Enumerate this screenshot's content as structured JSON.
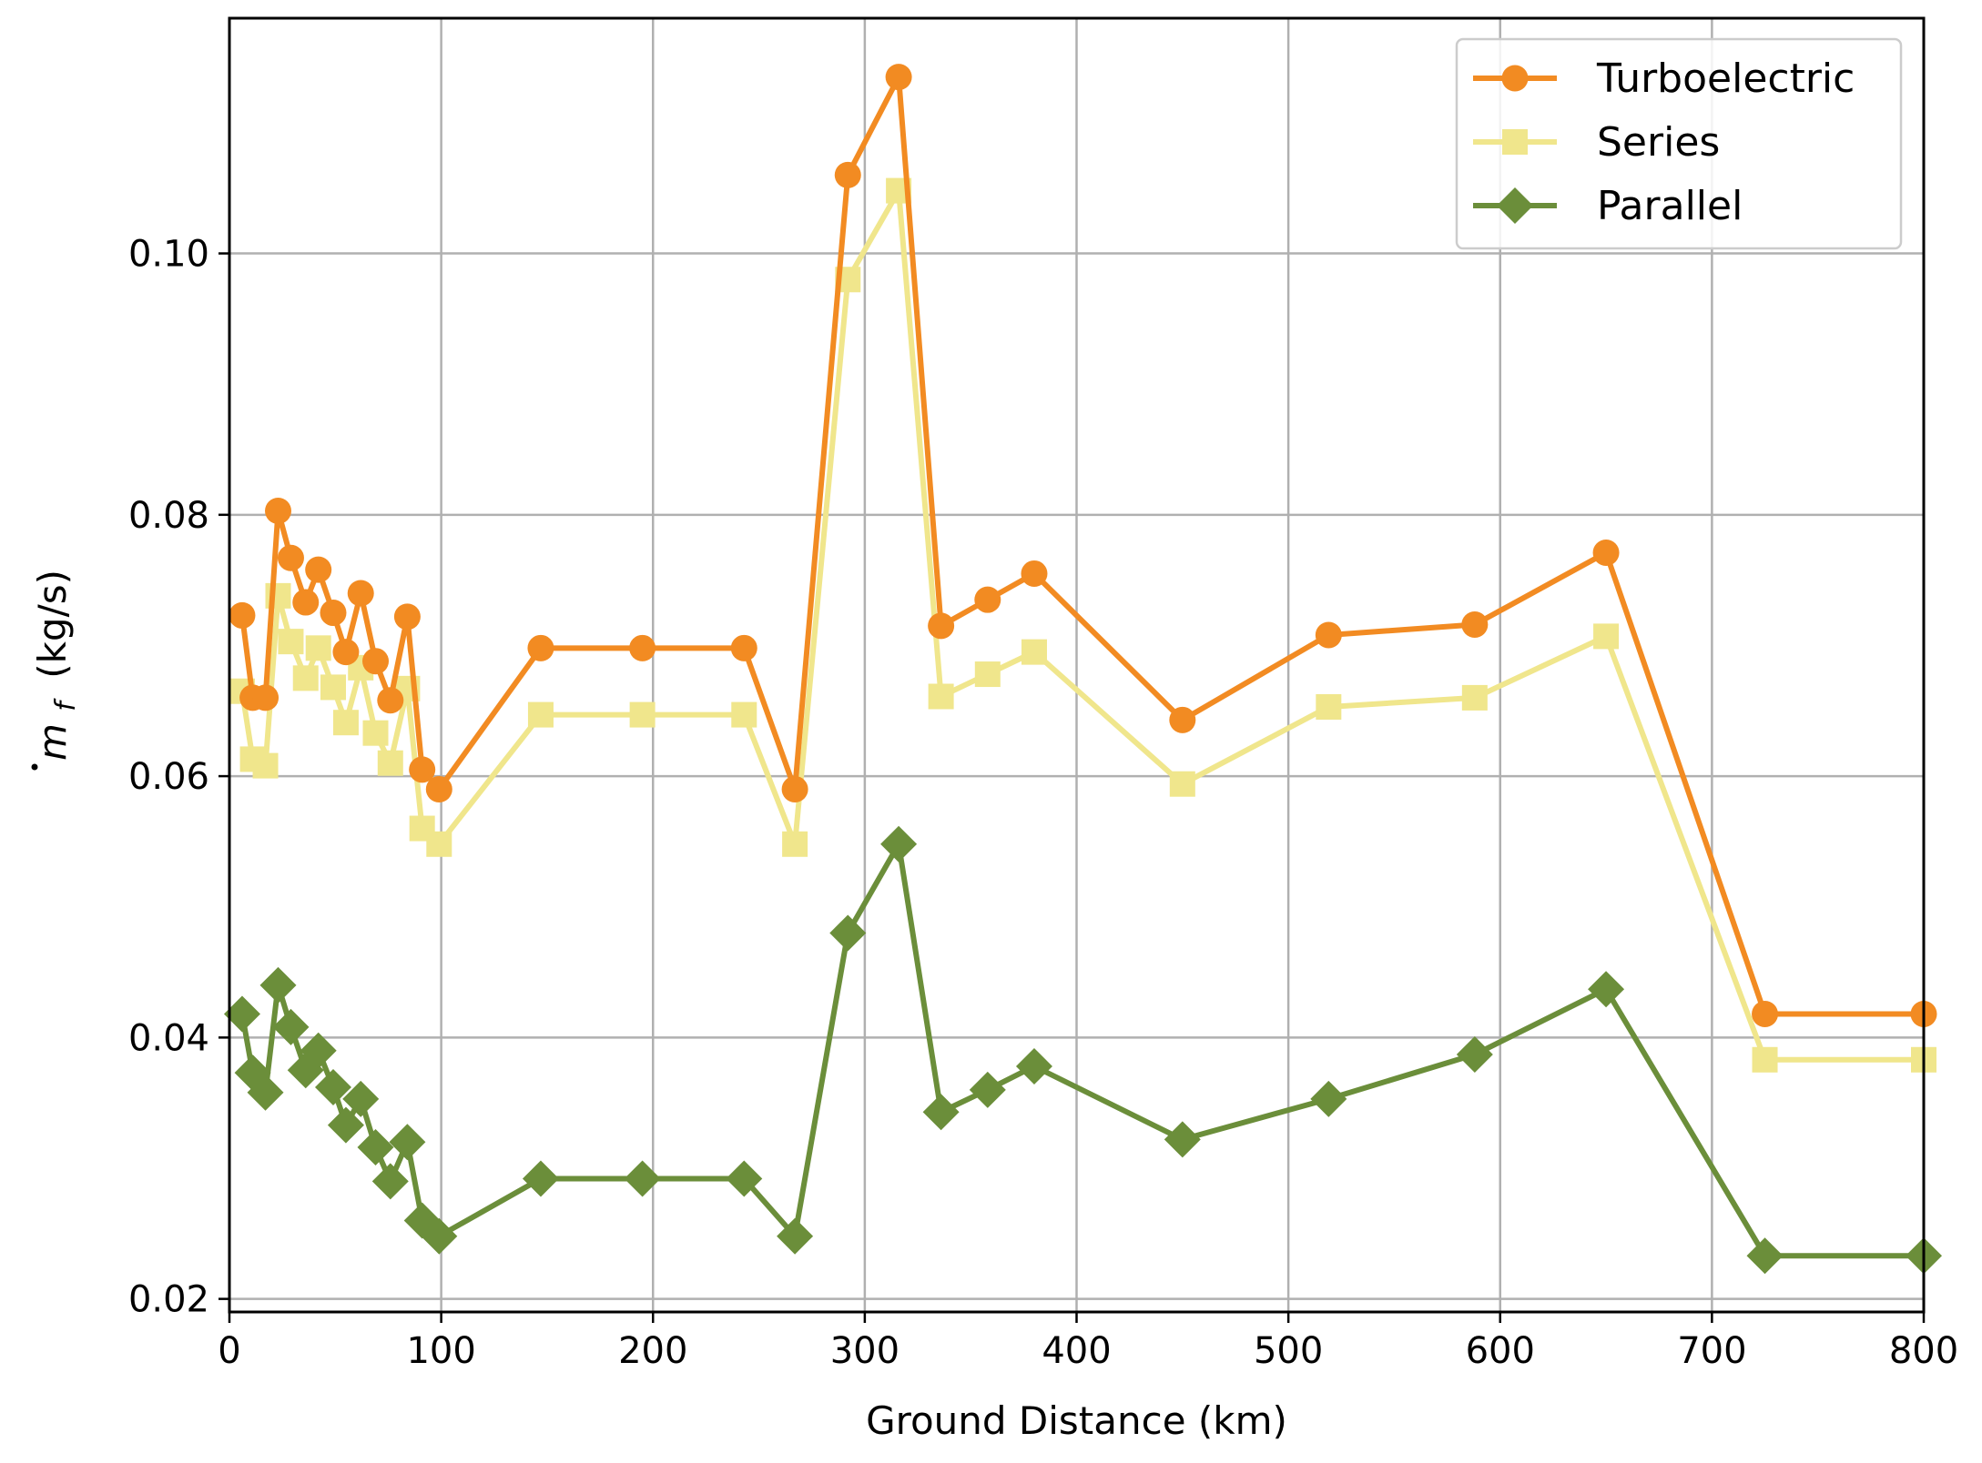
{
  "chart_data": {
    "type": "line",
    "title": "",
    "xlabel": "Ground Distance (km)",
    "ylabel": "ṁ_f (kg/s)",
    "ylabel_parts": {
      "symbol": "m",
      "subscript": "f",
      "units": "(kg/s)"
    },
    "xlim": [
      0,
      800
    ],
    "ylim": [
      0.019,
      0.118
    ],
    "xticks": [
      0,
      100,
      200,
      300,
      400,
      500,
      600,
      700,
      800
    ],
    "xtick_labels": [
      "0",
      "100",
      "200",
      "300",
      "400",
      "500",
      "600",
      "700",
      "800"
    ],
    "yticks": [
      0.02,
      0.04,
      0.06,
      0.08,
      0.1
    ],
    "ytick_labels": [
      "0.02",
      "0.04",
      "0.06",
      "0.08",
      "0.10"
    ],
    "grid": true,
    "legend_position": "top-right",
    "x": [
      6,
      11,
      17,
      23,
      29,
      36,
      42,
      49,
      55,
      62,
      69,
      76,
      84,
      91,
      99,
      147,
      195,
      243,
      267,
      292,
      316,
      336,
      358,
      380,
      450,
      519,
      588,
      650,
      725,
      800
    ],
    "series": [
      {
        "name": "Turboelectric",
        "color": "#f28b22",
        "marker": "circle",
        "values": [
          0.0723,
          0.066,
          0.066,
          0.0803,
          0.0767,
          0.0733,
          0.0758,
          0.0725,
          0.0695,
          0.074,
          0.0688,
          0.0658,
          0.0722,
          0.0605,
          0.059,
          0.0698,
          0.0698,
          0.0698,
          0.059,
          0.106,
          0.1135,
          0.0715,
          0.0735,
          0.0755,
          0.0643,
          0.0708,
          0.0716,
          0.0771,
          0.0418,
          0.0418
        ]
      },
      {
        "name": "Series",
        "color": "#f0e68c",
        "marker": "square",
        "values": [
          0.0665,
          0.0613,
          0.0608,
          0.0738,
          0.0703,
          0.0675,
          0.0698,
          0.0668,
          0.0641,
          0.0683,
          0.0633,
          0.061,
          0.0667,
          0.056,
          0.0548,
          0.0647,
          0.0647,
          0.0647,
          0.0548,
          0.098,
          0.1048,
          0.0661,
          0.0678,
          0.0695,
          0.0594,
          0.0653,
          0.066,
          0.0707,
          0.0383,
          0.0383
        ]
      },
      {
        "name": "Parallel",
        "color": "#6b8e3a",
        "marker": "diamond",
        "values": [
          0.0418,
          0.0373,
          0.0358,
          0.044,
          0.0408,
          0.0375,
          0.039,
          0.0362,
          0.0333,
          0.0353,
          0.0316,
          0.029,
          0.032,
          0.026,
          0.0248,
          0.0292,
          0.0292,
          0.0292,
          0.0248,
          0.048,
          0.0548,
          0.0343,
          0.036,
          0.0378,
          0.0322,
          0.0353,
          0.0387,
          0.0437,
          0.0233,
          0.0233
        ]
      }
    ]
  }
}
